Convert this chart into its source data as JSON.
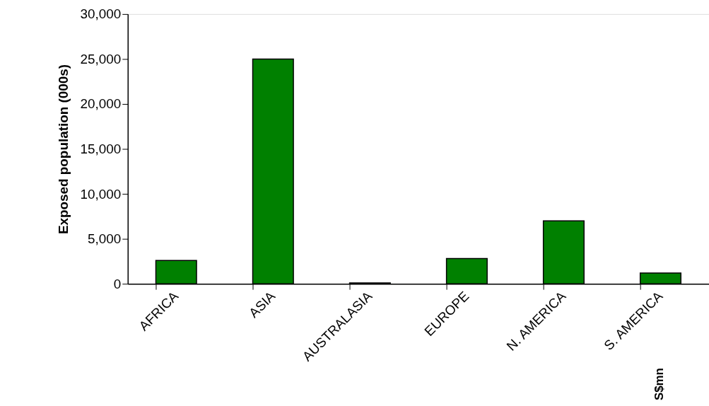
{
  "chart_data": {
    "type": "bar",
    "ylabel": "Exposed population (000s)",
    "categories": [
      "AFRICA",
      "ASIA",
      "AUSTRALASIA",
      "EUROPE",
      "N. AMERICA",
      "S. AMERICA"
    ],
    "values": [
      2600,
      25000,
      100,
      2800,
      7000,
      1200
    ],
    "color": "#008000",
    "ylim": [
      0,
      30000
    ],
    "yticks": [
      {
        "value": 0,
        "label": "0"
      },
      {
        "value": 5000,
        "label": "5,000"
      },
      {
        "value": 10000,
        "label": "10,000"
      },
      {
        "value": 15000,
        "label": "15,000"
      },
      {
        "value": 20000,
        "label": "20,000"
      },
      {
        "value": 25000,
        "label": "25,000"
      },
      {
        "value": 30000,
        "label": "30,000"
      }
    ],
    "grid": false,
    "annotations": [
      "S$mn"
    ]
  }
}
